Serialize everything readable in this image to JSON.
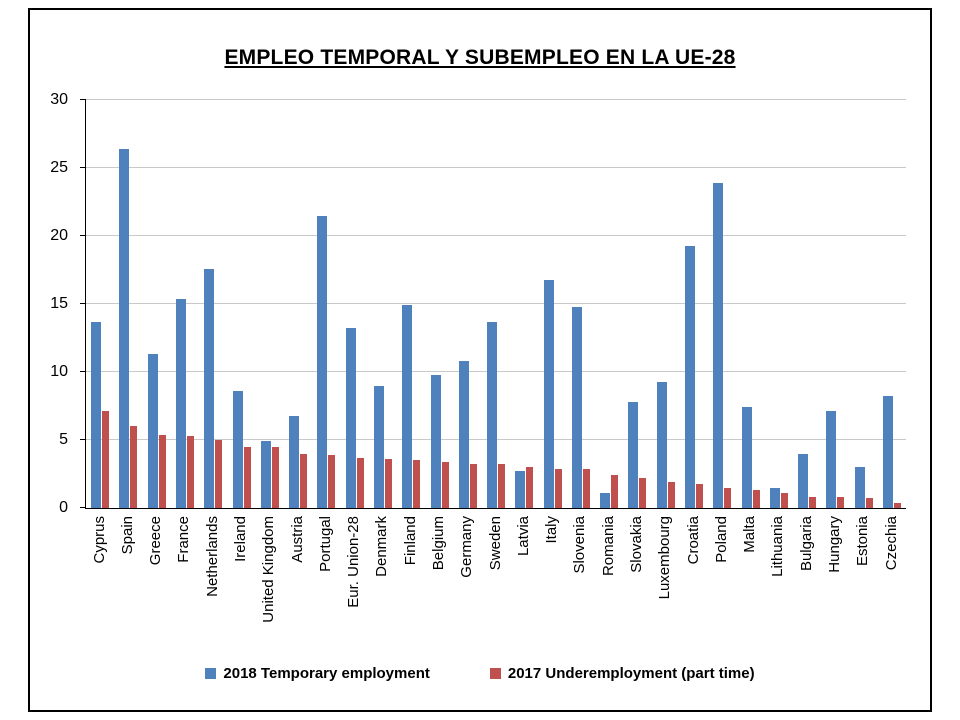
{
  "chart_data": {
    "type": "bar",
    "title": "EMPLEO TEMPORAL Y SUBEMPLEO EN LA UE-28",
    "categories": [
      "Cyprus",
      "Spain",
      "Greece",
      "France",
      "Netherlands",
      "Ireland",
      "United Kingdom",
      "Austria",
      "Portugal",
      "Eur. Union-28",
      "Denmark",
      "Finland",
      "Belgium",
      "Germany",
      "Sweden",
      "Latvia",
      "Italy",
      "Slovenia",
      "Romania",
      "Slovakia",
      "Luxembourg",
      "Croatia",
      "Poland",
      "Malta",
      "Lithuania",
      "Bulgaria",
      "Hungary",
      "Estonia",
      "Czechia"
    ],
    "series": [
      {
        "name": "2018 Temporary employment",
        "color": "#4F81BD",
        "values": [
          13.7,
          26.4,
          11.3,
          15.4,
          17.6,
          8.6,
          4.9,
          6.8,
          21.5,
          13.2,
          9.0,
          14.9,
          9.8,
          10.8,
          13.7,
          2.7,
          16.8,
          14.8,
          1.1,
          7.8,
          9.3,
          19.3,
          23.9,
          7.4,
          1.5,
          4.0,
          7.1,
          3.0,
          8.2
        ]
      },
      {
        "name": "2017 Underemployment (part time)",
        "color": "#C0504D",
        "values": [
          7.1,
          6.0,
          5.4,
          5.3,
          5.0,
          4.5,
          4.5,
          4.0,
          3.9,
          3.7,
          3.6,
          3.5,
          3.4,
          3.2,
          3.2,
          3.0,
          2.9,
          2.9,
          2.4,
          2.2,
          1.9,
          1.8,
          1.5,
          1.3,
          1.1,
          0.8,
          0.8,
          0.7,
          0.4
        ]
      }
    ],
    "xlabel": "",
    "ylabel": "",
    "ylim": [
      0,
      30
    ],
    "ytick_step": 5,
    "grid": true,
    "legend_position": "bottom"
  }
}
